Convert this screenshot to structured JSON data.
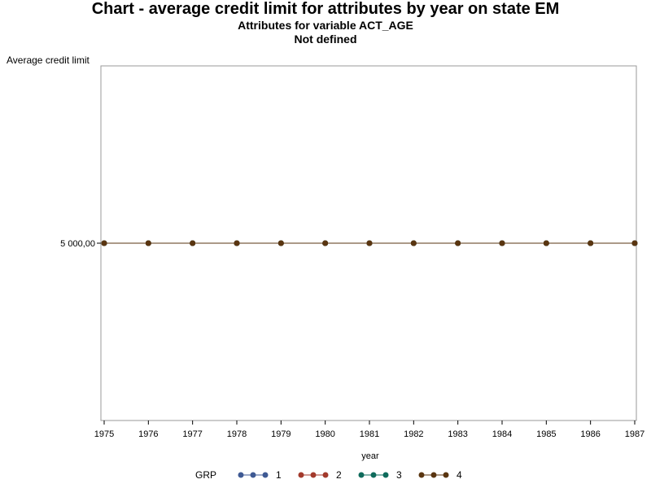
{
  "title": "Chart - average credit limit for attributes by year on state EM",
  "subtitles": [
    "Attributes for variable ACT_AGE",
    "Not defined"
  ],
  "colors": {
    "frame": "#9a9a9a",
    "axis": "#000000"
  },
  "chart_data": {
    "type": "line",
    "title": "Chart - average credit limit for attributes by year on state EM",
    "subtitle": "Attributes for variable ACT_AGE\nNot defined",
    "xlabel": "year",
    "ylabel": "Average credit limit",
    "x": [
      1975,
      1976,
      1977,
      1978,
      1979,
      1980,
      1981,
      1982,
      1983,
      1984,
      1985,
      1986,
      1987
    ],
    "x_tick_labels": [
      "1975",
      "1976",
      "1977",
      "1978",
      "1979",
      "1980",
      "1981",
      "1982",
      "1983",
      "1984",
      "1985",
      "1986",
      "1987"
    ],
    "y_tick_values": [
      5000
    ],
    "y_tick_labels": [
      "5 000,00"
    ],
    "ylim": [
      4000,
      6000
    ],
    "grid": false,
    "legend": {
      "title": "GRP",
      "placement": "bottom"
    },
    "series": [
      {
        "name": "1",
        "color": "#3f5a94",
        "values": [
          5000,
          5000,
          5000,
          5000,
          5000,
          5000,
          5000,
          5000,
          5000,
          5000,
          5000,
          5000,
          5000
        ]
      },
      {
        "name": "2",
        "color": "#a33a2c",
        "values": [
          5000,
          5000,
          5000,
          5000,
          5000,
          5000,
          5000,
          5000,
          5000,
          5000,
          5000,
          5000,
          5000
        ]
      },
      {
        "name": "3",
        "color": "#0f6b5c",
        "values": [
          5000,
          5000,
          5000,
          5000,
          5000,
          5000,
          5000,
          5000,
          5000,
          5000,
          5000,
          5000,
          5000
        ]
      },
      {
        "name": "4",
        "color": "#5a3510",
        "values": [
          5000,
          5000,
          5000,
          5000,
          5000,
          5000,
          5000,
          5000,
          5000,
          5000,
          5000,
          5000,
          5000
        ]
      }
    ]
  }
}
